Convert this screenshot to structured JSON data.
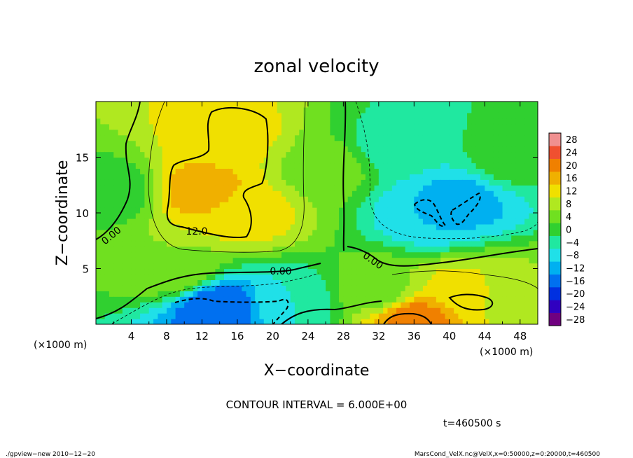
{
  "chart_data": {
    "type": "heatmap",
    "title": "zonal velocity",
    "xlabel": "X−coordinate",
    "ylabel": "Z−coordinate",
    "x_units_left": "(×1000 m)",
    "x_units_right": "(×1000 m)",
    "xlim": [
      0,
      50
    ],
    "ylim": [
      0,
      20
    ],
    "x_ticks": [
      4,
      8,
      12,
      16,
      20,
      24,
      28,
      32,
      36,
      40,
      44,
      48
    ],
    "y_ticks": [
      5,
      10,
      15
    ],
    "contour_interval_text": "CONTOUR INTERVAL = 6.000E+00",
    "time_text": "t=460500 s",
    "contour_labels": [
      "0.00",
      "12.0",
      "0.00",
      "0.00"
    ],
    "colorbar": {
      "ticks": [
        28,
        24,
        20,
        16,
        12,
        8,
        4,
        0,
        -4,
        -8,
        -12,
        -16,
        -20,
        -24,
        -28
      ],
      "tick_labels": [
        "28",
        "24",
        "20",
        "16",
        "12",
        "8",
        "4",
        "0",
        "−4",
        "−8",
        "−12",
        "−16",
        "−20",
        "−24",
        "−28"
      ],
      "min": -30,
      "max": 30
    },
    "field_features": [
      {
        "x": 12,
        "z": 12,
        "value": 16
      },
      {
        "x": 15,
        "z": 17,
        "value": 12
      },
      {
        "x": 17,
        "z": 10,
        "value": 12
      },
      {
        "x": 9,
        "z": 5,
        "value": 6
      },
      {
        "x": 2,
        "z": 12,
        "value": 0
      },
      {
        "x": 26,
        "z": 14,
        "value": 4
      },
      {
        "x": 14,
        "z": 1.5,
        "value": -18
      },
      {
        "x": 22,
        "z": 2,
        "value": -6
      },
      {
        "x": 41,
        "z": 11,
        "value": -12
      },
      {
        "x": 38,
        "z": 10,
        "value": -10
      },
      {
        "x": 34,
        "z": 16,
        "value": -4
      },
      {
        "x": 36,
        "z": 0.5,
        "value": 20
      },
      {
        "x": 42,
        "z": 3,
        "value": 12
      },
      {
        "x": 32,
        "z": 3,
        "value": 4
      },
      {
        "x": 47,
        "z": 3,
        "value": 6
      },
      {
        "x": 47,
        "z": 15,
        "value": 0
      }
    ]
  },
  "footer": {
    "left": "./gpview−new  2010−12−20",
    "right": "MarsCond_VelX.nc@VelX,x=0:50000,z=0:20000,t=460500"
  },
  "colors": {
    "palette": [
      "#700080",
      "#3000c0",
      "#0030e0",
      "#0070f0",
      "#00b0f0",
      "#20e0e8",
      "#20e8a0",
      "#30d030",
      "#70e020",
      "#b0e820",
      "#f0e000",
      "#f0b000",
      "#f08000",
      "#f05030",
      "#f09090"
    ]
  }
}
